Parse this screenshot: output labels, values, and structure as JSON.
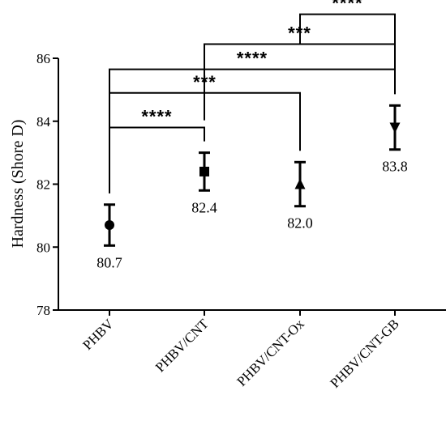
{
  "chart_data": {
    "type": "scatter",
    "title": "",
    "xlabel": "",
    "ylabel": "Hardness (Shore D)",
    "ylim": [
      78,
      86
    ],
    "yticks": [
      78,
      80,
      82,
      84,
      86
    ],
    "grid": false,
    "categories": [
      "PHBV",
      "PHBV/CNT",
      "PHBV/CNT-Ox",
      "PHBV/CNT-GB"
    ],
    "values": [
      80.7,
      82.4,
      82.0,
      83.8
    ],
    "errors": [
      0.65,
      0.6,
      0.7,
      0.7
    ],
    "markers": [
      "circle",
      "square",
      "triangle-up",
      "triangle-down"
    ],
    "value_labels": [
      "80.7",
      "82.4",
      "82.0",
      "83.8"
    ],
    "significance": [
      {
        "from": 0,
        "to": 1,
        "label": "****",
        "level": 83.8
      },
      {
        "from": 0,
        "to": 2,
        "label": "***",
        "level": 84.9
      },
      {
        "from": 0,
        "to": 3,
        "label": "****",
        "level": 85.65
      },
      {
        "from": 1,
        "to": 3,
        "label": "***",
        "level": 86.45
      },
      {
        "from": 2,
        "to": 3,
        "label": "****",
        "level": 87.4
      }
    ]
  }
}
